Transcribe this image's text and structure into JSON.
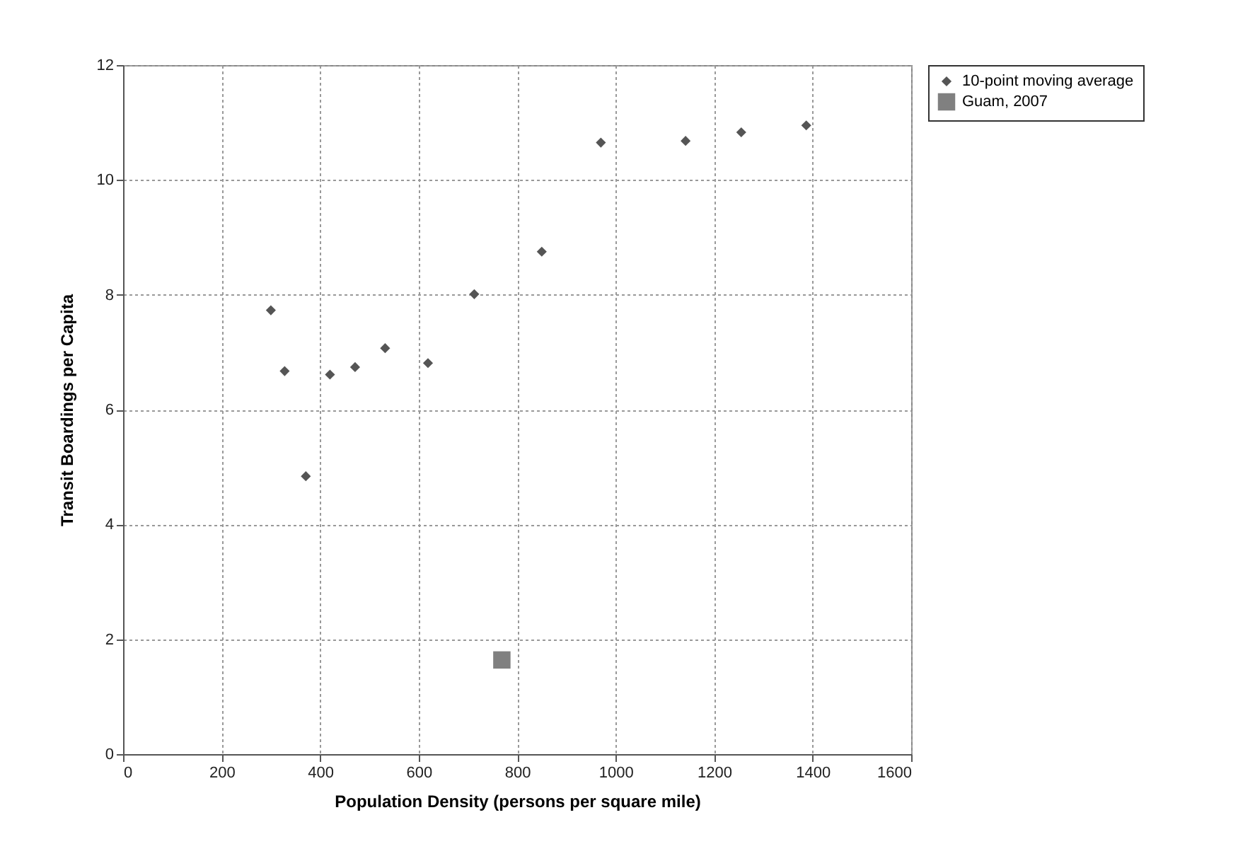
{
  "chart_data": {
    "type": "scatter",
    "xlabel": "Population Density (persons per square mile)",
    "ylabel": "Transit Boardings per Capita",
    "xlim": [
      0,
      1600
    ],
    "xticks": [
      0,
      200,
      400,
      600,
      800,
      1000,
      1200,
      1400,
      1600
    ],
    "ylim": [
      0,
      12
    ],
    "yticks": [
      0,
      2,
      4,
      6,
      8,
      10,
      12
    ],
    "grid": true,
    "legend": "right",
    "series": [
      {
        "name": "10-point moving average",
        "color": "#555555",
        "marker": "diamond",
        "x": [
          300,
          328,
          371,
          420,
          471,
          532,
          619,
          713,
          850,
          970,
          1142,
          1255,
          1387
        ],
        "values": [
          7.73,
          6.67,
          4.84,
          6.61,
          6.74,
          7.07,
          6.81,
          8.01,
          8.75,
          10.65,
          10.68,
          10.83,
          10.95
        ]
      },
      {
        "name": "Guam, 2007",
        "color": "#808080",
        "marker": "square",
        "x": [
          769
        ],
        "values": [
          1.64
        ]
      }
    ]
  }
}
